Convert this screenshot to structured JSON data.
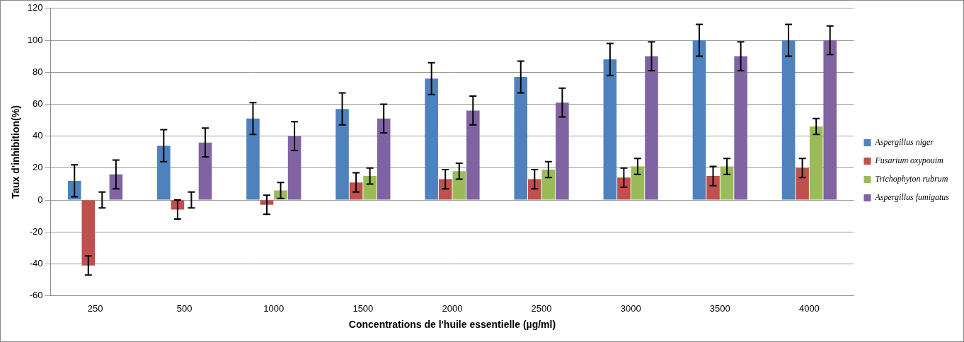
{
  "chart_data": {
    "type": "bar",
    "x_label": "Concentrations de l'huile essentielle (µg/ml)",
    "y_label": "Taux d'inhibition(%)",
    "categories": [
      "250",
      "500",
      "1000",
      "1500",
      "2000",
      "2500",
      "3000",
      "3500",
      "4000"
    ],
    "series": [
      {
        "name": "Aspergillus niger",
        "color": "#4f81bd",
        "values": [
          12,
          34,
          51,
          57,
          76,
          77,
          88,
          100,
          100
        ],
        "errors": [
          10,
          10,
          10,
          10,
          10,
          10,
          10,
          10,
          10
        ]
      },
      {
        "name": "Fusarium oxypouim",
        "color": "#c0504d",
        "values": [
          -41,
          -6,
          -3,
          11,
          13,
          13,
          14,
          15,
          20
        ],
        "errors": [
          6,
          6,
          6,
          6,
          6,
          6,
          6,
          6,
          6
        ]
      },
      {
        "name": "Trichophyton rubrum",
        "color": "#9bbb59",
        "values": [
          0,
          0,
          6,
          15,
          18,
          19,
          21,
          21,
          46
        ],
        "errors": [
          5,
          5,
          5,
          5,
          5,
          5,
          5,
          5,
          5
        ]
      },
      {
        "name": "Aspergillus fumigatus",
        "color": "#8064a2",
        "values": [
          16,
          36,
          40,
          51,
          56,
          61,
          90,
          90,
          100
        ],
        "errors": [
          9,
          9,
          9,
          9,
          9,
          9,
          9,
          9,
          9
        ]
      }
    ],
    "ylim": [
      -60,
      120
    ],
    "yticks": [
      -60,
      -40,
      -20,
      0,
      20,
      40,
      60,
      80,
      100,
      120
    ],
    "grid": true,
    "legend": "right"
  }
}
